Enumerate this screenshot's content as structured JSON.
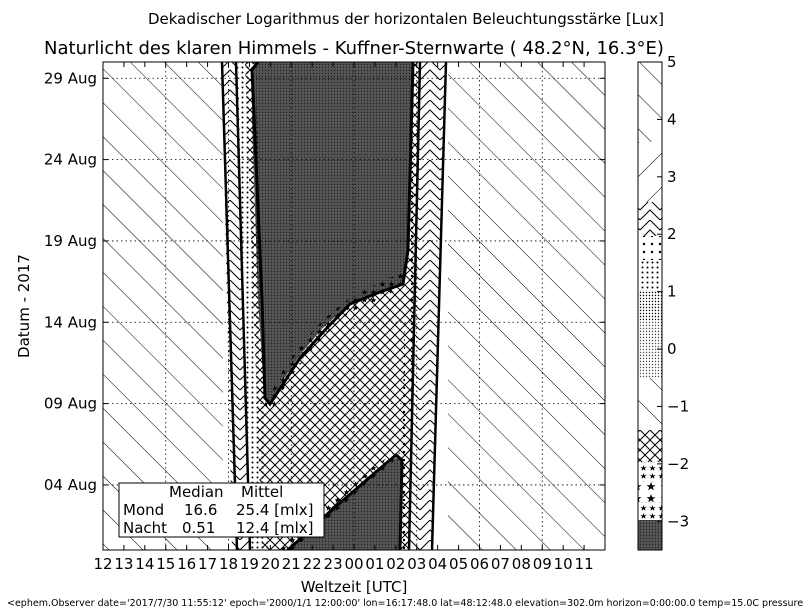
{
  "chart_data": {
    "type": "contour",
    "suptitle": "Dekadischer Logarithmus der horizontalen Beleuchtungsstärke [Lux]",
    "title": "Naturlicht des klaren Himmels - Kuffner-Sternwarte ( 48.2°N, 16.3°E)",
    "xlabel": "Weltzeit [UTC]",
    "ylabel": "Datum - 2017",
    "xticks": [
      "12",
      "13",
      "14",
      "15",
      "16",
      "17",
      "18",
      "19",
      "20",
      "21",
      "22",
      "23",
      "00",
      "01",
      "02",
      "03",
      "04",
      "05",
      "06",
      "07",
      "08",
      "09",
      "10",
      "11"
    ],
    "yticks": [
      "04 Aug",
      "09 Aug",
      "14 Aug",
      "19 Aug",
      "24 Aug",
      "29 Aug"
    ],
    "xlim": [
      12,
      36
    ],
    "ylim": [
      "2017-07-31",
      "2017-08-30"
    ],
    "colorbar": {
      "ticks": [
        "5",
        "4",
        "3",
        "2",
        "1",
        "0",
        "−1",
        "−2",
        "−3"
      ],
      "range": [
        -3.5,
        5
      ]
    },
    "legend": {
      "header_median": "Median",
      "header_mean": "Mittel",
      "rows": [
        {
          "label": "Mond",
          "median": "16.6",
          "mean": "25.4 [mlx]"
        },
        {
          "label": "Nacht",
          "median": "0.51",
          "mean": "12.4 [mlx]"
        }
      ]
    },
    "footer": "<ephem.Observer date='2017/7/30 11:55:12' epoch='2000/1/1 12:00:00' lon=16:17:48.0 lat=48:12:48.0 elevation=302.0m horizon=0:00:00.0 temp=15.0C pressure"
  }
}
